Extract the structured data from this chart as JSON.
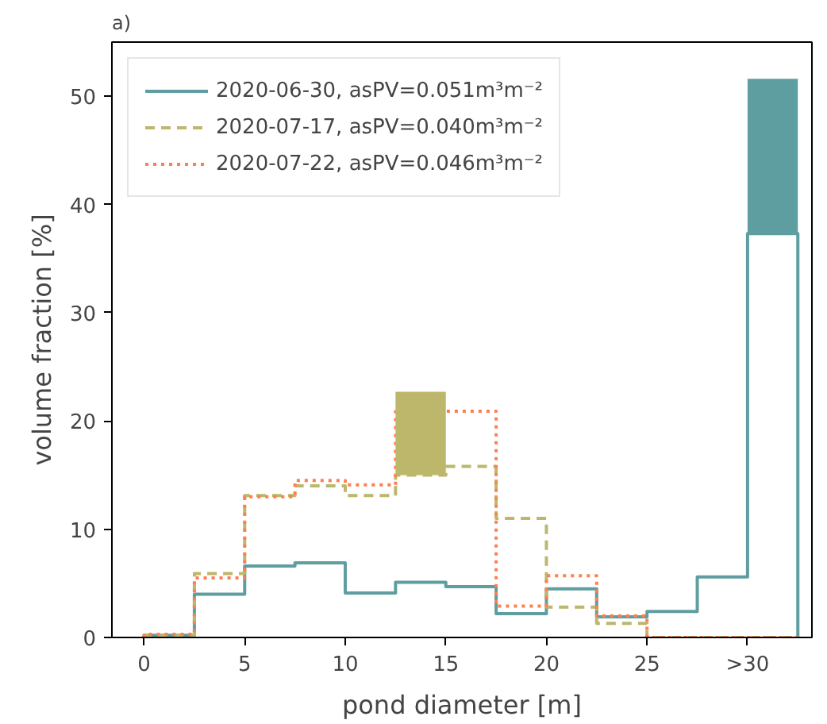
{
  "chart_data": {
    "type": "histogram",
    "title": "a)",
    "xlabel": "pond diameter [m]",
    "ylabel": "volume fraction [%]",
    "bins": [
      0,
      2.5,
      5,
      7.5,
      10,
      12.5,
      15,
      17.5,
      20,
      22.5,
      25,
      27.5,
      30,
      32.5
    ],
    "series": [
      {
        "name": "2020-06-30, asPV=0.051m³m⁻²",
        "color": "#5f9ea0",
        "line_style": "solid",
        "values": [
          0.2,
          4.0,
          6.6,
          6.9,
          4.1,
          5.1,
          4.7,
          2.2,
          4.5,
          1.9,
          2.4,
          5.6,
          37.3
        ]
      },
      {
        "name": "2020-07-17, asPV=0.040m³m⁻²",
        "color": "#bdb76b",
        "line_style": "dashed",
        "values": [
          0.2,
          5.9,
          13.1,
          14.0,
          13.1,
          15.0,
          15.8,
          11.0,
          2.8,
          1.3,
          0,
          0,
          0
        ]
      },
      {
        "name": "2020-07-22, asPV=0.046m³m⁻²",
        "color": "#ff7f50",
        "line_style": "dotted",
        "values": [
          0.3,
          5.5,
          13.0,
          14.5,
          14.1,
          21.0,
          20.9,
          2.9,
          5.7,
          2.0,
          0,
          0,
          0
        ]
      },
      {
        "type": "bar",
        "color": "#5f9ea0",
        "x": [
          31.25
        ],
        "base": [
          37.3
        ],
        "values": [
          14.3
        ]
      },
      {
        "type": "bar",
        "color": "#bdb76b",
        "x": [
          13.75
        ],
        "base": [
          15.0
        ],
        "values": [
          7.7
        ]
      }
    ],
    "xlim": [
      -1.6,
      33.2
    ],
    "ylim": [
      0,
      55
    ],
    "xticks": [
      0,
      5,
      10,
      15,
      20,
      25,
      {
        "value": 30,
        "label": ">30"
      }
    ],
    "yticks": [
      0,
      10,
      20,
      30,
      40,
      50
    ],
    "legend": "top left"
  }
}
